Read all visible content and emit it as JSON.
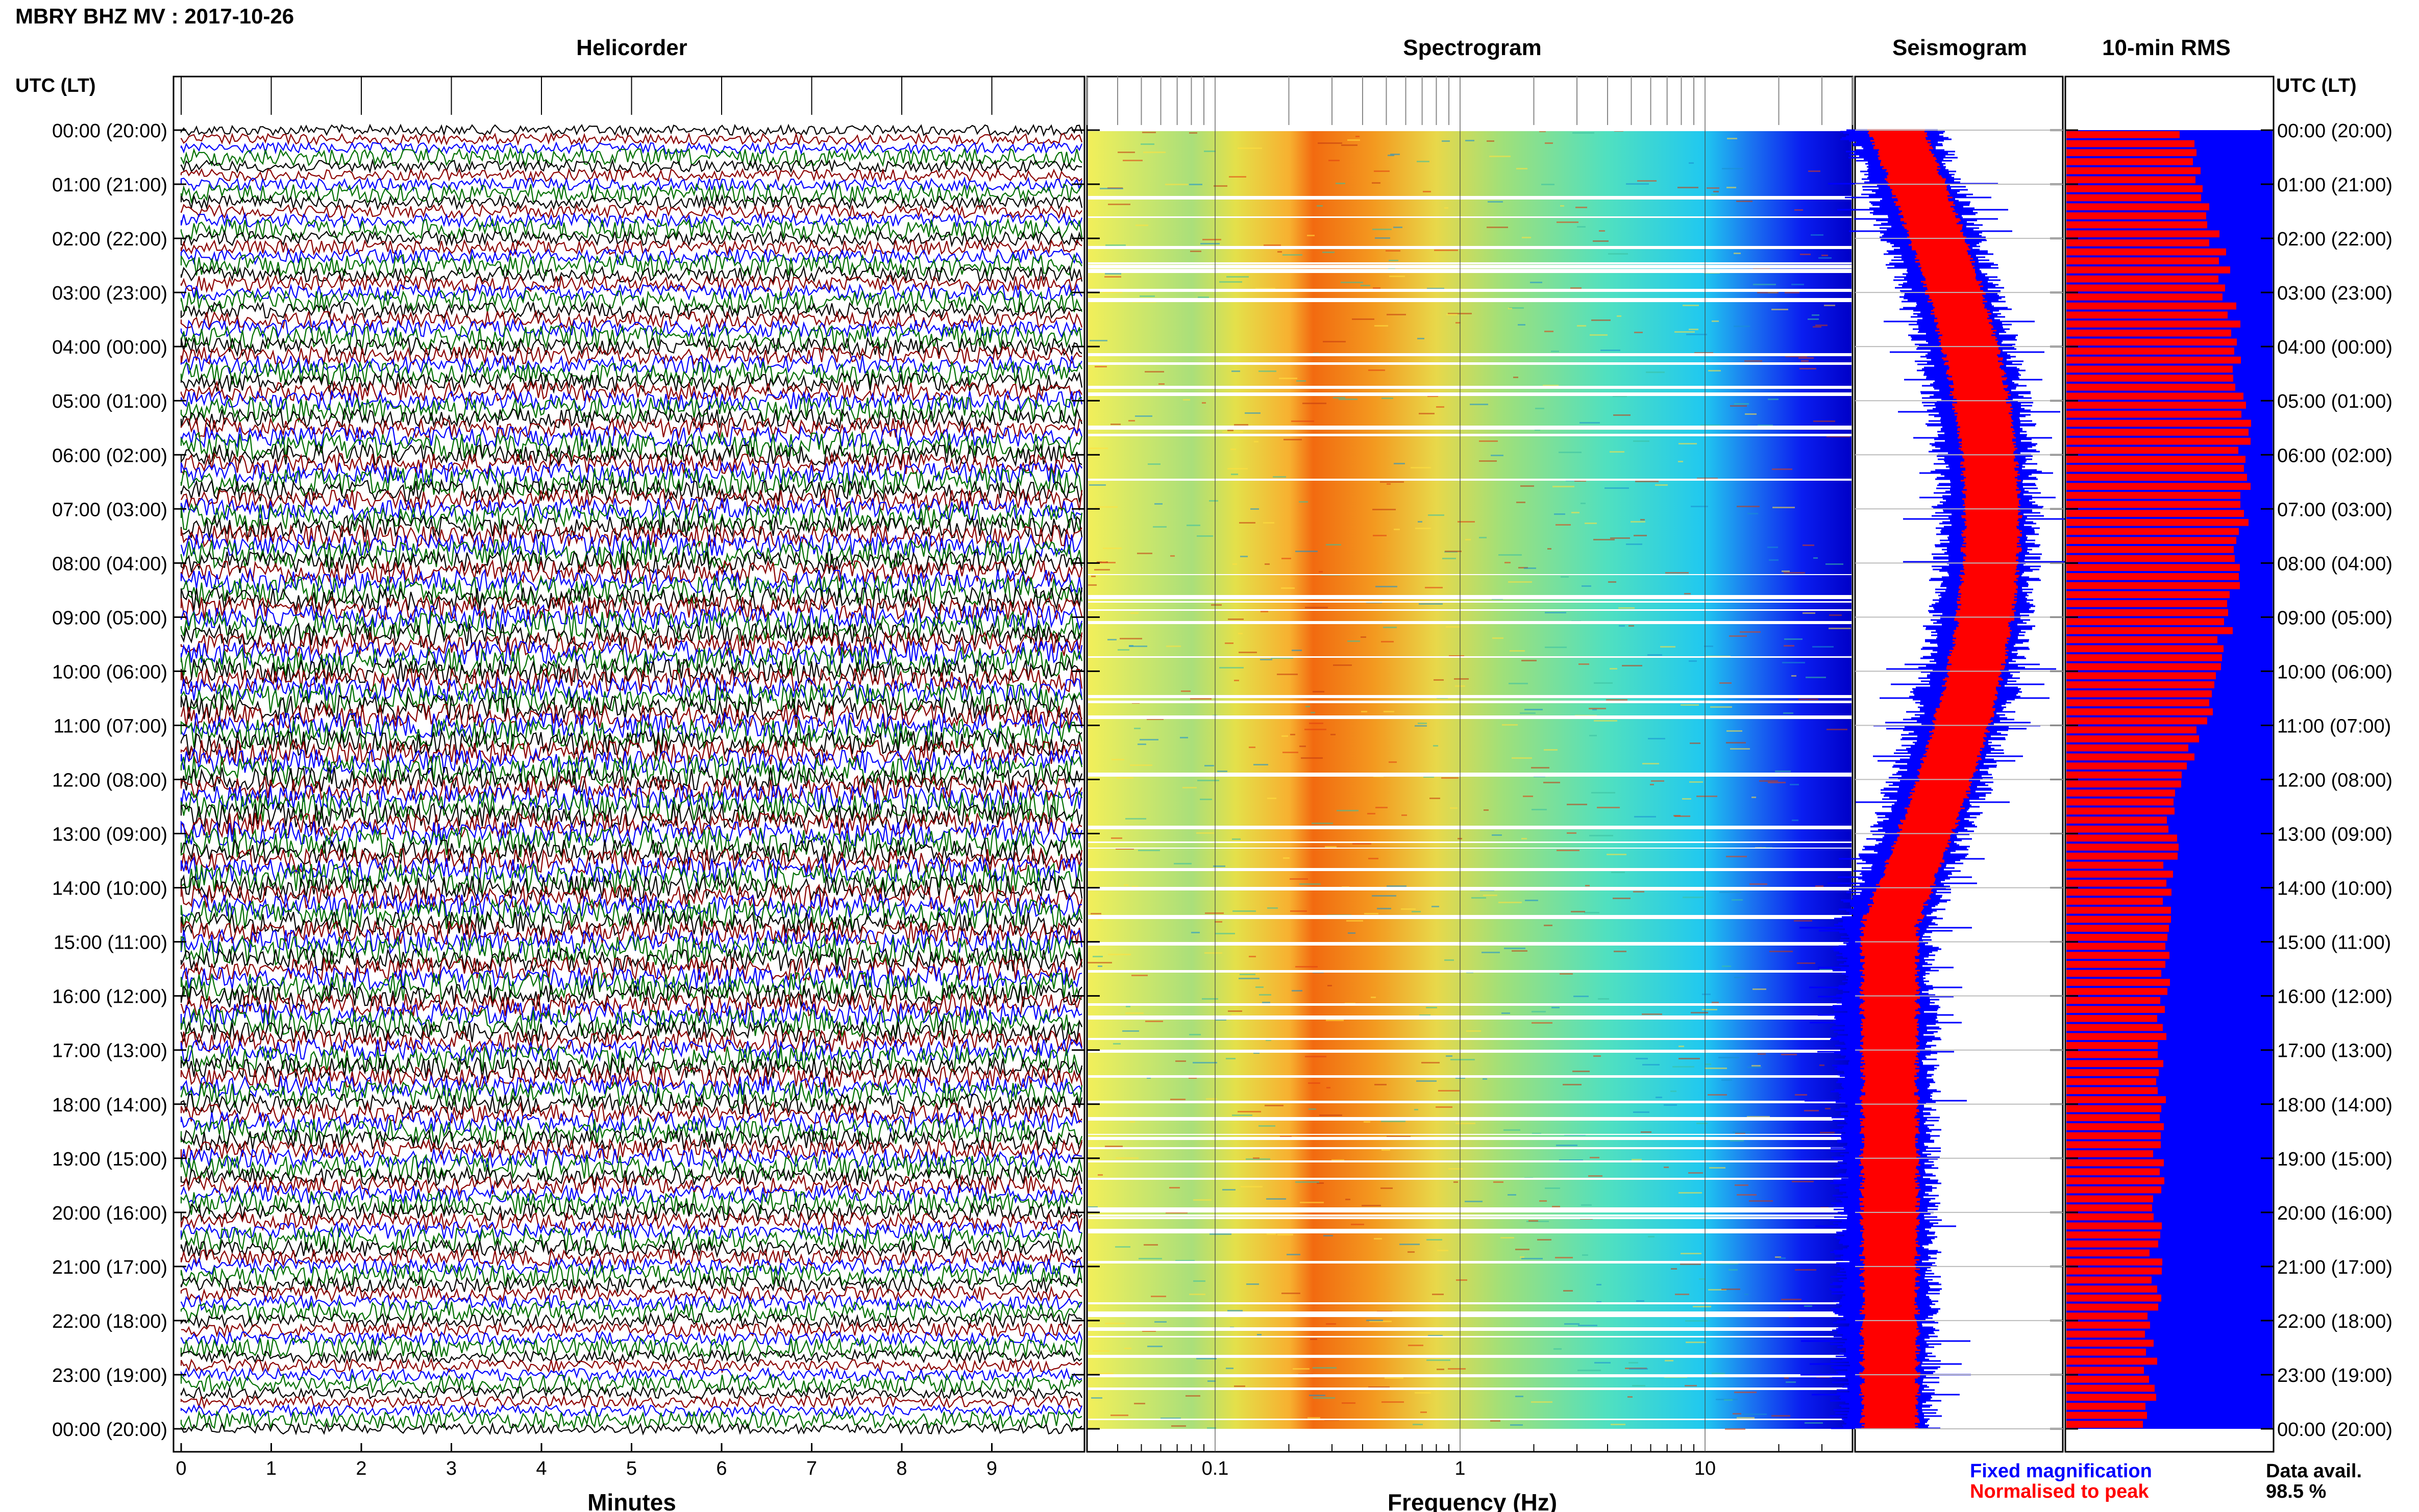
{
  "header": {
    "title": "MBRY BHZ MV : 2017-10-26"
  },
  "panels": {
    "helicorder": "Helicorder",
    "spectrogram": "Spectrogram",
    "seismogram": "Seismogram",
    "rms": "10-min RMS"
  },
  "time_axis": {
    "label": "UTC (LT)",
    "ticks": [
      "00:00 (20:00)",
      "01:00 (21:00)",
      "02:00 (22:00)",
      "03:00 (23:00)",
      "04:00 (00:00)",
      "05:00 (01:00)",
      "06:00 (02:00)",
      "07:00 (03:00)",
      "08:00 (04:00)",
      "09:00 (05:00)",
      "10:00 (06:00)",
      "11:00 (07:00)",
      "12:00 (08:00)",
      "13:00 (09:00)",
      "14:00 (10:00)",
      "15:00 (11:00)",
      "16:00 (12:00)",
      "17:00 (13:00)",
      "18:00 (14:00)",
      "19:00 (15:00)",
      "20:00 (16:00)",
      "21:00 (17:00)",
      "22:00 (18:00)",
      "23:00 (19:00)",
      "00:00 (20:00)"
    ]
  },
  "legend": {
    "fixed": "Fixed magnification",
    "normalised": "Normalised to peak"
  },
  "availability": {
    "label": "Data avail.",
    "value": "98.5 %"
  },
  "colors": {
    "blue": "#0000ff",
    "red": "#ff0000",
    "green": "#007000",
    "darkred": "#8b0000",
    "black": "#000000"
  },
  "chart_data": [
    {
      "type": "line",
      "title": "Helicorder",
      "xlabel": "Minutes",
      "ylabel": "UTC (LT)",
      "xlim": [
        0,
        10
      ],
      "xticks": [
        "0",
        "1",
        "2",
        "3",
        "4",
        "5",
        "6",
        "7",
        "8",
        "9"
      ],
      "rows_per_hour": 6,
      "line_colors": [
        "black",
        "darkred",
        "blue",
        "green"
      ]
    },
    {
      "type": "heatmap",
      "title": "Spectrogram",
      "xlabel": "Frequency (Hz)",
      "x_scale": "log",
      "xlim": [
        0.03,
        40
      ],
      "xticks": [
        "0.1",
        "1",
        "10"
      ],
      "peak_band_hz": [
        0.2,
        0.6
      ]
    },
    {
      "type": "line",
      "title": "Seismogram",
      "series": [
        {
          "name": "Fixed magnification",
          "color": "blue"
        },
        {
          "name": "Normalised to peak",
          "color": "red"
        }
      ]
    },
    {
      "type": "bar",
      "title": "10-min RMS",
      "series": [
        {
          "name": "Fixed magnification",
          "color": "blue"
        },
        {
          "name": "Normalised to peak",
          "color": "red"
        }
      ]
    }
  ]
}
